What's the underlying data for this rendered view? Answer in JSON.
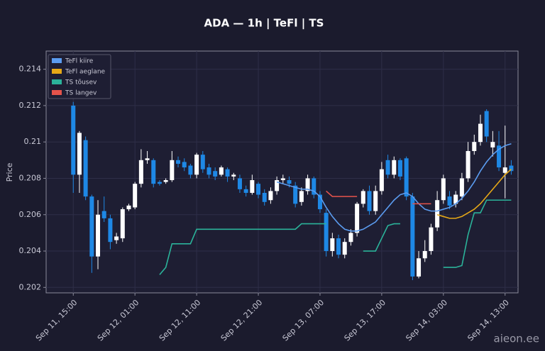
{
  "chart_data": {
    "type": "candlestick",
    "title": "ADA — 1h  |  TeFl  |  TS",
    "y_label": "Price",
    "watermark": "aieon.ee",
    "x": [
      0,
      1,
      2,
      3,
      4,
      5,
      6,
      7,
      8,
      9,
      10,
      11,
      12,
      13,
      14,
      15,
      16,
      17,
      18,
      19,
      20,
      21,
      22,
      23,
      24,
      25,
      26,
      27,
      28,
      29,
      30,
      31,
      32,
      33,
      34,
      35,
      36,
      37,
      38,
      39,
      40,
      41,
      42,
      43,
      44,
      45,
      46,
      47,
      48,
      49,
      50,
      51,
      52,
      53,
      54,
      55,
      56,
      57,
      58,
      59,
      60,
      61,
      62,
      63,
      64,
      65,
      66,
      67,
      68,
      69,
      70,
      71
    ],
    "open": [
      0.212,
      0.2082,
      0.2101,
      0.207,
      0.2037,
      0.2062,
      0.2058,
      0.2046,
      0.2047,
      0.2063,
      0.2064,
      0.2077,
      0.209,
      0.209,
      0.2078,
      0.2078,
      0.2079,
      0.209,
      0.2089,
      0.2087,
      0.2082,
      0.2093,
      0.2086,
      0.2084,
      0.2082,
      0.2085,
      0.2081,
      0.208,
      0.2074,
      0.2072,
      0.2077,
      0.2072,
      0.2068,
      0.2073,
      0.2079,
      0.2079,
      0.2076,
      0.2067,
      0.2073,
      0.208,
      0.2071,
      0.2061,
      0.204,
      0.2047,
      0.2038,
      0.2045,
      0.205,
      0.2066,
      0.2073,
      0.2062,
      0.2073,
      0.209,
      0.2082,
      0.209,
      0.2091,
      0.207,
      0.2026,
      0.2036,
      0.204,
      0.2053,
      0.2068,
      0.207,
      0.2066,
      0.207,
      0.208,
      0.2095,
      0.21,
      0.2117,
      0.2097,
      0.2098,
      0.2083,
      0.2087
    ],
    "high": [
      0.2122,
      0.2106,
      0.2103,
      0.2071,
      0.2068,
      0.207,
      0.206,
      0.205,
      0.2064,
      0.2066,
      0.2078,
      0.2096,
      0.2095,
      0.2091,
      0.2079,
      0.208,
      0.2095,
      0.2092,
      0.2091,
      0.2088,
      0.2094,
      0.2095,
      0.2088,
      0.2086,
      0.2087,
      0.2086,
      0.2083,
      0.2082,
      0.2076,
      0.2082,
      0.2078,
      0.2074,
      0.2075,
      0.2081,
      0.2082,
      0.2081,
      0.2078,
      0.2075,
      0.2082,
      0.2081,
      0.2073,
      0.2063,
      0.205,
      0.2049,
      0.2047,
      0.2052,
      0.2067,
      0.2074,
      0.2076,
      0.2076,
      0.2089,
      0.2093,
      0.2092,
      0.2091,
      0.2092,
      0.2072,
      0.204,
      0.2046,
      0.2055,
      0.2073,
      0.2082,
      0.2073,
      0.2073,
      0.2083,
      0.21,
      0.2104,
      0.2115,
      0.2118,
      0.2106,
      0.2106,
      0.2109,
      0.209
    ],
    "low": [
      0.2072,
      0.2072,
      0.2068,
      0.2028,
      0.203,
      0.2056,
      0.2041,
      0.2044,
      0.2045,
      0.2062,
      0.2063,
      0.2075,
      0.2088,
      0.2075,
      0.2076,
      0.2077,
      0.2078,
      0.2086,
      0.2084,
      0.208,
      0.208,
      0.2083,
      0.208,
      0.2079,
      0.2081,
      0.2078,
      0.2079,
      0.2072,
      0.207,
      0.2071,
      0.2069,
      0.2065,
      0.2066,
      0.2071,
      0.2077,
      0.2075,
      0.2064,
      0.2065,
      0.2071,
      0.2069,
      0.2061,
      0.2037,
      0.2037,
      0.2036,
      0.2036,
      0.2043,
      0.2048,
      0.2064,
      0.206,
      0.206,
      0.2071,
      0.208,
      0.208,
      0.2079,
      0.2068,
      0.2024,
      0.2025,
      0.2034,
      0.2038,
      0.2051,
      0.2066,
      0.2063,
      0.2064,
      0.2068,
      0.2078,
      0.2093,
      0.2098,
      0.21,
      0.2092,
      0.2084,
      0.2069,
      0.2082
    ],
    "close": [
      0.2082,
      0.2105,
      0.207,
      0.2037,
      0.206,
      0.2058,
      0.2045,
      0.2048,
      0.2063,
      0.2065,
      0.2077,
      0.209,
      0.2091,
      0.2077,
      0.2077,
      0.2079,
      0.209,
      0.2088,
      0.2086,
      0.2082,
      0.2093,
      0.2085,
      0.2082,
      0.2081,
      0.2086,
      0.2081,
      0.2082,
      0.2074,
      0.2072,
      0.2079,
      0.2071,
      0.2067,
      0.2073,
      0.2079,
      0.208,
      0.2077,
      0.2066,
      0.2073,
      0.208,
      0.2071,
      0.2063,
      0.204,
      0.2047,
      0.2038,
      0.2045,
      0.205,
      0.2066,
      0.2073,
      0.2062,
      0.2073,
      0.2085,
      0.2082,
      0.209,
      0.2081,
      0.207,
      0.2026,
      0.2036,
      0.204,
      0.2053,
      0.2068,
      0.208,
      0.2065,
      0.2071,
      0.208,
      0.2095,
      0.21,
      0.211,
      0.2103,
      0.21,
      0.2086,
      0.2086,
      0.2084
    ],
    "up_color": "#ffffff",
    "down_color": "#1e88e5",
    "series": [
      {
        "name": "TeFl kiire",
        "color": "#5b9cf0",
        "values": [
          null,
          null,
          null,
          null,
          null,
          null,
          null,
          null,
          null,
          null,
          null,
          null,
          null,
          null,
          null,
          null,
          null,
          null,
          null,
          null,
          null,
          null,
          null,
          null,
          null,
          null,
          null,
          null,
          null,
          null,
          null,
          null,
          null,
          0.2078,
          0.2077,
          0.2076,
          0.2075,
          0.2074,
          0.2074,
          0.2073,
          0.207,
          0.2064,
          0.2059,
          0.2055,
          0.2052,
          0.2051,
          0.2051,
          0.2052,
          0.2054,
          0.2056,
          0.206,
          0.2064,
          0.2068,
          0.2071,
          0.2072,
          0.207,
          0.2066,
          0.2063,
          0.2062,
          0.2062,
          0.2063,
          0.2064,
          0.2066,
          0.2069,
          0.2073,
          0.2078,
          0.2084,
          0.2089,
          0.2093,
          0.2096,
          0.2098,
          0.2099
        ]
      },
      {
        "name": "TeFl aeglane",
        "color": "#e6a817",
        "values": [
          null,
          null,
          null,
          null,
          null,
          null,
          null,
          null,
          null,
          null,
          null,
          null,
          null,
          null,
          null,
          null,
          null,
          null,
          null,
          null,
          null,
          null,
          null,
          null,
          null,
          null,
          null,
          null,
          null,
          null,
          null,
          null,
          null,
          null,
          null,
          null,
          null,
          null,
          null,
          null,
          null,
          null,
          null,
          null,
          null,
          null,
          null,
          null,
          null,
          null,
          null,
          null,
          null,
          null,
          null,
          null,
          null,
          null,
          null,
          0.206,
          0.2059,
          0.2058,
          0.2058,
          0.2059,
          0.2061,
          0.2063,
          0.2066,
          0.207,
          0.2074,
          0.2078,
          0.2082,
          0.2085
        ]
      },
      {
        "name": "TS tõusev",
        "color": "#2bb39a",
        "values": [
          null,
          null,
          null,
          null,
          null,
          null,
          null,
          null,
          null,
          null,
          null,
          null,
          null,
          null,
          0.2027,
          0.2031,
          0.2044,
          0.2044,
          0.2044,
          0.2044,
          0.2052,
          0.2052,
          0.2052,
          0.2052,
          0.2052,
          0.2052,
          0.2052,
          0.2052,
          0.2052,
          0.2052,
          0.2052,
          0.2052,
          0.2052,
          0.2052,
          0.2052,
          0.2052,
          0.2052,
          0.2055,
          0.2055,
          0.2055,
          0.2055,
          0.2055,
          null,
          null,
          null,
          null,
          null,
          0.204,
          0.204,
          0.204,
          0.2047,
          0.2054,
          0.2055,
          0.2055,
          null,
          null,
          null,
          null,
          null,
          null,
          0.2031,
          0.2031,
          0.2031,
          0.2032,
          0.2049,
          0.2061,
          0.2061,
          0.2068,
          0.2068,
          0.2068,
          0.2068,
          0.2068
        ]
      },
      {
        "name": "TS langev",
        "color": "#e5534b",
        "values": [
          null,
          null,
          null,
          null,
          null,
          null,
          null,
          null,
          null,
          null,
          null,
          null,
          null,
          null,
          null,
          null,
          null,
          null,
          null,
          null,
          null,
          null,
          null,
          null,
          null,
          null,
          null,
          null,
          null,
          null,
          null,
          null,
          null,
          null,
          null,
          null,
          null,
          null,
          null,
          null,
          null,
          0.2073,
          0.207,
          0.207,
          0.207,
          0.207,
          0.207,
          null,
          null,
          null,
          null,
          null,
          null,
          null,
          null,
          0.2066,
          0.2066,
          0.2066,
          0.2066,
          null,
          null,
          null,
          null,
          null,
          null,
          null,
          null,
          null,
          null,
          null,
          null,
          null
        ]
      }
    ],
    "xlim": [
      -4.4,
      72.1
    ],
    "xticks": [
      {
        "value": 0,
        "label": "Sep 11, 15:00"
      },
      {
        "value": 10,
        "label": "Sep 12, 01:00"
      },
      {
        "value": 20,
        "label": "Sep 12, 11:00"
      },
      {
        "value": 30,
        "label": "Sep 12, 21:00"
      },
      {
        "value": 40,
        "label": "Sep 13, 07:00"
      },
      {
        "value": 50,
        "label": "Sep 13, 17:00"
      },
      {
        "value": 60,
        "label": "Sep 14, 03:00"
      },
      {
        "value": 70,
        "label": "Sep 14, 13:00"
      }
    ],
    "ylim": [
      0.2017,
      0.215
    ],
    "yticks": [
      0.202,
      0.204,
      0.206,
      0.208,
      0.21,
      0.212,
      0.214
    ],
    "grid": true,
    "legend": "upper left"
  }
}
